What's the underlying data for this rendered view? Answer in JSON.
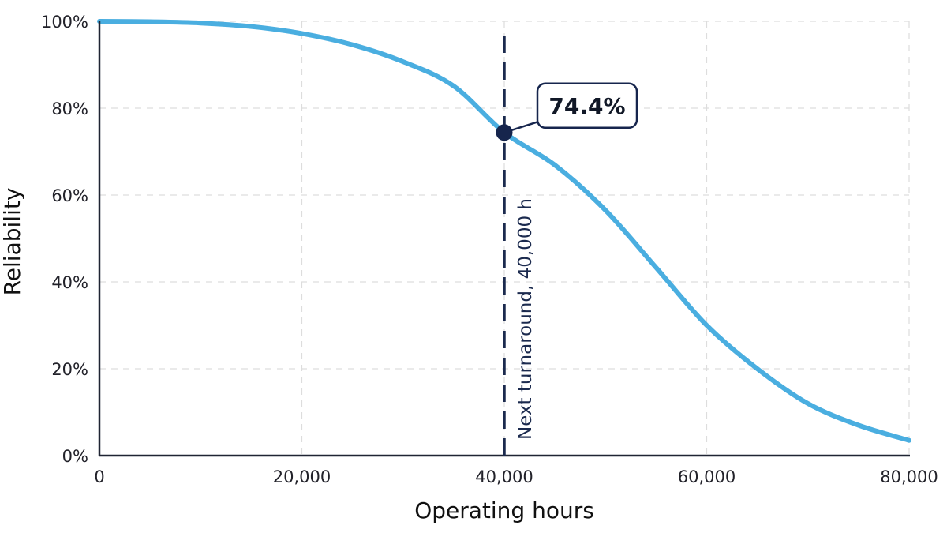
{
  "chart_data": {
    "type": "line",
    "title": "",
    "xlabel": "Operating hours",
    "ylabel": "Reliability",
    "xlim": [
      0,
      80000
    ],
    "ylim": [
      0,
      100
    ],
    "x_ticks": [
      0,
      20000,
      40000,
      60000,
      80000
    ],
    "x_tick_labels": [
      "0",
      "20,000",
      "40,000",
      "60,000",
      "80,000"
    ],
    "y_ticks": [
      0,
      20,
      40,
      60,
      80,
      100
    ],
    "y_tick_labels": [
      "0%",
      "20%",
      "40%",
      "60%",
      "80%",
      "100%"
    ],
    "grid": true,
    "legend": "none",
    "series": [
      {
        "color": "#4aaee0",
        "x": [
          0,
          5000,
          10000,
          15000,
          20000,
          25000,
          30000,
          35000,
          40000,
          45000,
          50000,
          55000,
          60000,
          65000,
          70000,
          75000,
          80000
        ],
        "y": [
          100,
          99.9,
          99.6,
          98.8,
          97.2,
          94.6,
          90.7,
          85.1,
          74.4,
          66.9,
          56.5,
          43.3,
          30.0,
          20.0,
          12.0,
          7.0,
          3.5
        ]
      }
    ],
    "marker_line": {
      "x": 40000,
      "label": "Next turnaround, 40,000 h",
      "color": "#1b2a4e"
    },
    "highlight_point": {
      "x": 40000,
      "y": 74.4,
      "label": "74.4%",
      "color": "#16254d"
    },
    "axis_color": "#1f2433",
    "grid_color": "#dddddd"
  }
}
